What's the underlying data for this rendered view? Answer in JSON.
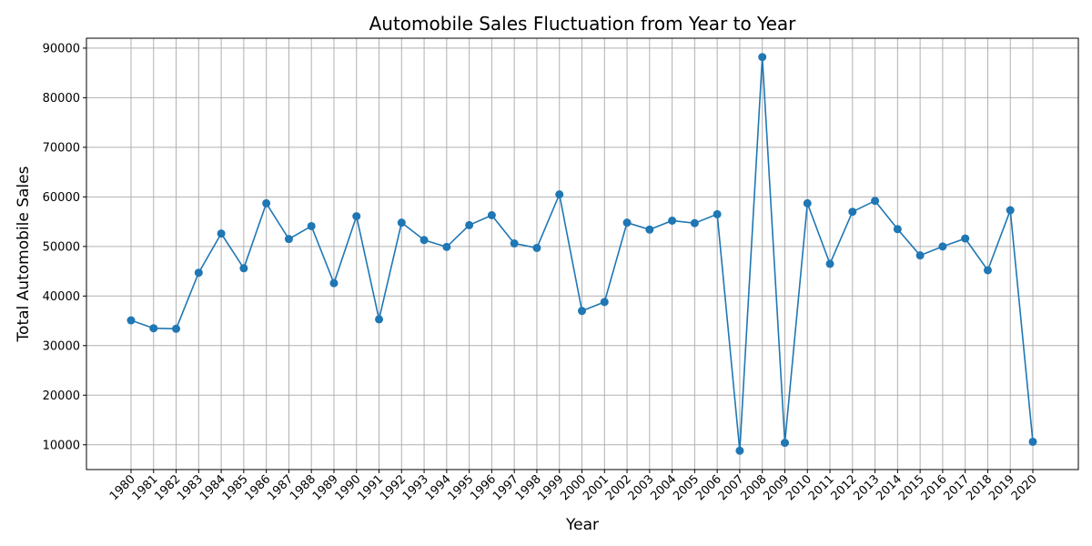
{
  "chart_data": {
    "type": "line",
    "title": "Automobile Sales Fluctuation from Year to Year",
    "xlabel": "Year",
    "ylabel": "Total Automobile Sales",
    "grid": true,
    "ylim": [
      5000,
      92000
    ],
    "yticks": [
      10000,
      20000,
      30000,
      40000,
      50000,
      60000,
      70000,
      80000,
      90000
    ],
    "line_color": "#1f77b4",
    "marker": "circle",
    "x": [
      "1980",
      "1981",
      "1982",
      "1983",
      "1984",
      "1985",
      "1986",
      "1987",
      "1988",
      "1989",
      "1990",
      "1991",
      "1992",
      "1993",
      "1994",
      "1995",
      "1996",
      "1997",
      "1998",
      "1999",
      "2000",
      "2001",
      "2002",
      "2003",
      "2004",
      "2005",
      "2006",
      "2007",
      "2008",
      "2009",
      "2010",
      "2011",
      "2012",
      "2013",
      "2014",
      "2015",
      "2016",
      "2017",
      "2018",
      "2019",
      "2020"
    ],
    "series": [
      {
        "values": [
          35100,
          33500,
          33400,
          44700,
          52600,
          45600,
          58700,
          51500,
          54100,
          42600,
          56100,
          35300,
          54800,
          51300,
          49900,
          54300,
          56300,
          50600,
          49700,
          60500,
          37000,
          38800,
          54800,
          53400,
          55200,
          54700,
          56500,
          8800,
          88200,
          10400,
          58700,
          46500,
          57000,
          59200,
          53500,
          48200,
          50000,
          51600,
          45200,
          57300,
          10600
        ]
      }
    ]
  }
}
